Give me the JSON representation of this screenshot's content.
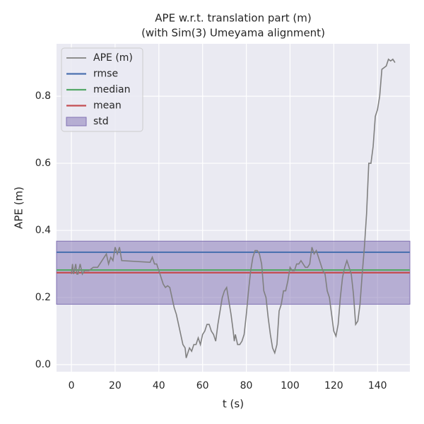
{
  "chart_data": {
    "type": "line",
    "title": [
      "APE w.r.t. translation part (m)",
      "(with Sim(3) Umeyama alignment)"
    ],
    "xlabel": "t (s)",
    "ylabel": "APE (m)",
    "xlim": [
      -6.8,
      154.8
    ],
    "ylim": [
      -0.021,
      0.956
    ],
    "xticks": [
      0,
      20,
      40,
      60,
      80,
      100,
      120,
      140
    ],
    "yticks": [
      {
        "value": 0,
        "label": "0.0"
      },
      0.2,
      0.4,
      0.6,
      0.8
    ],
    "grid": true,
    "legend": "upper left",
    "series": [
      {
        "name": "APE (m)",
        "color": "#808080",
        "x": [
          0,
          0.5,
          1,
          2,
          2.5,
          3,
          4,
          5,
          6,
          8,
          10,
          12,
          14,
          15,
          16,
          17,
          18,
          19,
          20,
          21,
          22,
          23,
          36,
          37,
          38,
          39,
          40,
          41,
          42,
          43,
          44,
          45,
          46,
          47,
          48,
          49,
          50,
          51,
          52,
          52.5,
          53,
          54,
          55,
          56,
          57,
          58,
          59,
          60,
          61,
          62,
          63,
          64,
          65,
          66,
          67,
          68,
          69,
          70,
          71,
          72,
          73,
          74,
          74.5,
          75,
          76,
          77,
          78,
          79,
          80,
          81,
          82,
          83,
          84,
          85,
          86,
          87,
          88,
          89,
          90,
          91,
          92,
          93,
          94,
          95,
          96,
          97,
          98,
          99,
          100,
          101,
          102,
          103,
          104,
          105,
          106,
          107,
          108,
          109,
          110,
          111,
          112,
          113,
          114,
          115,
          116,
          117,
          118,
          119,
          120,
          121,
          122,
          123,
          124,
          125,
          126,
          127,
          128,
          129,
          130,
          131,
          132,
          133,
          134,
          135,
          136,
          137,
          138,
          139,
          140,
          141,
          142,
          143,
          144,
          145,
          146,
          147,
          148
        ],
        "values": [
          0.27,
          0.3,
          0.27,
          0.3,
          0.27,
          0.27,
          0.3,
          0.27,
          0.28,
          0.28,
          0.29,
          0.29,
          0.31,
          0.32,
          0.33,
          0.3,
          0.32,
          0.31,
          0.35,
          0.33,
          0.35,
          0.31,
          0.305,
          0.32,
          0.3,
          0.3,
          0.28,
          0.26,
          0.24,
          0.23,
          0.235,
          0.23,
          0.2,
          0.17,
          0.15,
          0.12,
          0.09,
          0.06,
          0.05,
          0.02,
          0.03,
          0.05,
          0.04,
          0.06,
          0.06,
          0.08,
          0.06,
          0.09,
          0.1,
          0.12,
          0.12,
          0.1,
          0.09,
          0.07,
          0.12,
          0.16,
          0.2,
          0.22,
          0.23,
          0.19,
          0.15,
          0.1,
          0.07,
          0.09,
          0.06,
          0.06,
          0.07,
          0.09,
          0.15,
          0.22,
          0.28,
          0.32,
          0.34,
          0.34,
          0.33,
          0.3,
          0.22,
          0.2,
          0.14,
          0.09,
          0.05,
          0.035,
          0.06,
          0.16,
          0.18,
          0.22,
          0.22,
          0.25,
          0.29,
          0.28,
          0.28,
          0.3,
          0.3,
          0.31,
          0.3,
          0.29,
          0.29,
          0.3,
          0.35,
          0.33,
          0.34,
          0.32,
          0.3,
          0.28,
          0.27,
          0.22,
          0.2,
          0.15,
          0.1,
          0.085,
          0.12,
          0.2,
          0.26,
          0.29,
          0.31,
          0.29,
          0.27,
          0.21,
          0.12,
          0.13,
          0.18,
          0.27,
          0.35,
          0.45,
          0.6,
          0.6,
          0.65,
          0.74,
          0.76,
          0.8,
          0.88,
          0.885,
          0.89,
          0.91,
          0.905,
          0.91,
          0.9
        ]
      }
    ],
    "stats": [
      {
        "name": "rmse",
        "color": "#4c72b0",
        "value": 0.335
      },
      {
        "name": "median",
        "color": "#55a868",
        "value": 0.282
      },
      {
        "name": "mean",
        "color": "#c44e52",
        "value": 0.274
      }
    ],
    "std": {
      "name": "std",
      "color": "#8172b3",
      "value": 0.094
    }
  }
}
